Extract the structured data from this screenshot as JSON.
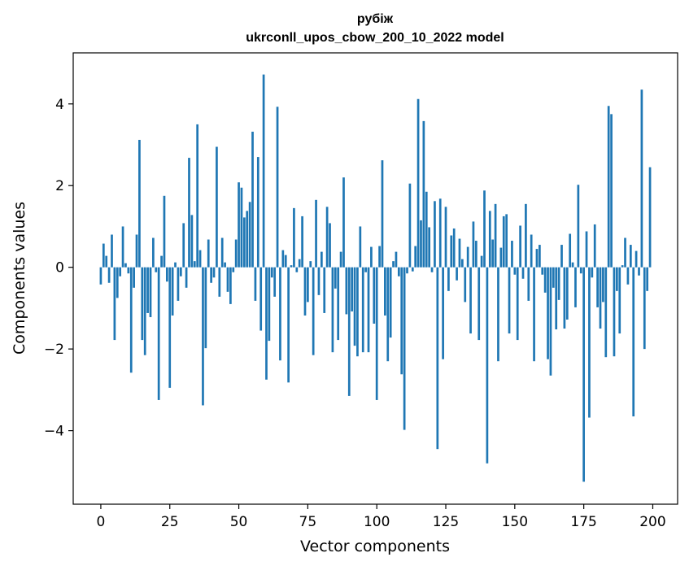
{
  "chart_data": {
    "type": "bar",
    "title": "рубіж",
    "subtitle": "ukrconll_upos_cbow_200_10_2022 model",
    "xlabel": "Vector components",
    "ylabel": "Components values",
    "xlim": [
      -10,
      209
    ],
    "ylim": [
      -5.8,
      5.25
    ],
    "xticks": [
      0,
      25,
      50,
      75,
      100,
      125,
      150,
      175,
      200
    ],
    "yticks": [
      -4,
      -2,
      0,
      2,
      4
    ],
    "ytick_labels": [
      "−4",
      "−2",
      "0",
      "2",
      "4"
    ],
    "grid": false,
    "bar_color": "#1f77b4",
    "values": [
      -0.42,
      0.58,
      0.28,
      -0.38,
      0.8,
      -1.78,
      -0.75,
      -0.22,
      1.0,
      0.1,
      -0.15,
      -2.58,
      -0.5,
      0.8,
      3.12,
      -1.78,
      -2.15,
      -1.12,
      -1.22,
      0.72,
      -0.12,
      -3.25,
      0.28,
      1.75,
      -0.35,
      -2.95,
      -1.18,
      0.12,
      -0.82,
      -0.22,
      1.08,
      -0.5,
      2.68,
      1.28,
      0.15,
      3.5,
      0.42,
      -3.38,
      -1.98,
      0.68,
      -0.38,
      -0.25,
      2.95,
      -0.72,
      0.72,
      0.12,
      -0.6,
      -0.9,
      -0.12,
      0.68,
      2.08,
      1.95,
      1.22,
      1.38,
      1.6,
      3.32,
      -0.82,
      2.7,
      -1.55,
      4.72,
      -2.75,
      -1.8,
      -0.25,
      -0.72,
      3.93,
      -2.28,
      0.42,
      0.3,
      -2.82,
      0.05,
      1.45,
      -0.12,
      0.2,
      1.25,
      -1.18,
      -0.85,
      0.15,
      -2.15,
      1.65,
      -0.68,
      0.38,
      -1.12,
      1.48,
      1.08,
      -2.08,
      -0.52,
      -1.78,
      0.38,
      2.2,
      -1.15,
      -3.15,
      -1.08,
      -1.92,
      -2.18,
      1.0,
      -2.08,
      -0.12,
      -2.08,
      0.5,
      -1.38,
      -3.25,
      0.52,
      2.62,
      -1.18,
      -2.3,
      -1.72,
      0.15,
      0.38,
      -0.22,
      -2.62,
      -3.98,
      -0.15,
      2.05,
      -0.1,
      0.52,
      4.12,
      1.15,
      3.58,
      1.85,
      0.98,
      -0.12,
      1.62,
      -4.45,
      1.68,
      -2.25,
      1.48,
      -0.58,
      0.78,
      0.95,
      -0.32,
      0.7,
      0.2,
      -0.85,
      0.5,
      -1.62,
      1.12,
      0.65,
      -1.78,
      0.28,
      1.88,
      -4.8,
      1.38,
      0.68,
      1.55,
      -2.3,
      0.48,
      1.25,
      1.3,
      -1.62,
      0.65,
      -0.18,
      -1.78,
      1.02,
      -0.28,
      1.55,
      -0.82,
      0.8,
      -2.3,
      0.45,
      0.55,
      -0.18,
      -0.62,
      -2.25,
      -2.65,
      -0.5,
      -1.52,
      -0.8,
      0.55,
      -1.5,
      -1.28,
      0.82,
      0.12,
      -0.98,
      2.02,
      -0.15,
      -5.25,
      0.88,
      -3.68,
      -0.25,
      1.05,
      -0.98,
      -1.5,
      -0.85,
      -2.2,
      3.95,
      3.75,
      -2.18,
      -0.58,
      -1.62,
      0.05,
      0.72,
      -0.42,
      0.55,
      -3.65,
      0.4,
      -0.2,
      4.35,
      -2.0,
      -0.58,
      2.45
    ]
  }
}
